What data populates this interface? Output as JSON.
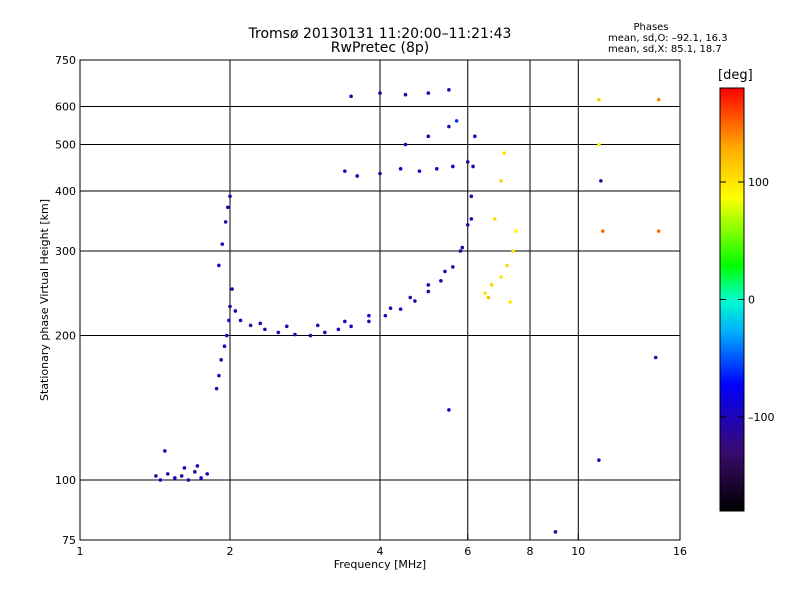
{
  "title": "Tromsø 20130131 11:20:00–11:21:43",
  "subtitle": "RwPretec (8p)",
  "stats": {
    "header": "Phases",
    "o_line": "mean, sd,O: –92.1, 16.3",
    "x_line": "mean, sd,X: 85.1, 18.7"
  },
  "colorbar": {
    "unit": "[deg]",
    "ticks": [
      {
        "value": 100,
        "label": "100"
      },
      {
        "value": 0,
        "label": "0"
      },
      {
        "value": -100,
        "label": "–100"
      }
    ],
    "range": [
      -180,
      180
    ]
  },
  "chart_data": {
    "type": "scatter",
    "title": "Tromsø 20130131 11:20:00–11:21:43",
    "subtitle": "RwPretec (8p)",
    "xlabel": "Frequency [MHz]",
    "ylabel": "Stationary phase Virtual Height [km]",
    "xscale": "log",
    "yscale": "log",
    "xlim": [
      1,
      16
    ],
    "ylim": [
      75,
      750
    ],
    "xticks": [
      {
        "v": 1,
        "l": "1"
      },
      {
        "v": 2,
        "l": "2"
      },
      {
        "v": 4,
        "l": "4"
      },
      {
        "v": 6,
        "l": "6"
      },
      {
        "v": 8,
        "l": "8"
      },
      {
        "v": 10,
        "l": "10"
      },
      {
        "v": 16,
        "l": "16"
      }
    ],
    "yticks": [
      {
        "v": 75,
        "l": "75"
      },
      {
        "v": 100,
        "l": "100"
      },
      {
        "v": 200,
        "l": "200"
      },
      {
        "v": 300,
        "l": "300"
      },
      {
        "v": 400,
        "l": "400"
      },
      {
        "v": 500,
        "l": "500"
      },
      {
        "v": 600,
        "l": "600"
      },
      {
        "v": 750,
        "l": "750"
      }
    ],
    "grid_x": [
      2,
      4,
      6,
      8,
      10
    ],
    "grid_y": [
      100,
      200,
      300,
      400,
      500,
      600
    ],
    "grid": true,
    "points": [
      [
        1.42,
        102,
        -110
      ],
      [
        1.45,
        100,
        -100
      ],
      [
        1.5,
        103,
        -105
      ],
      [
        1.55,
        101,
        -95
      ],
      [
        1.6,
        102,
        -110
      ],
      [
        1.65,
        100,
        -100
      ],
      [
        1.7,
        104,
        -115
      ],
      [
        1.75,
        101,
        -90
      ],
      [
        1.8,
        103,
        -105
      ],
      [
        1.48,
        115,
        -100
      ],
      [
        1.62,
        106,
        -95
      ],
      [
        1.72,
        107,
        -110
      ],
      [
        1.88,
        155,
        -105
      ],
      [
        1.9,
        165,
        -100
      ],
      [
        1.92,
        178,
        -110
      ],
      [
        1.95,
        190,
        -95
      ],
      [
        1.97,
        200,
        -100
      ],
      [
        1.99,
        215,
        -105
      ],
      [
        2.0,
        230,
        -110
      ],
      [
        2.02,
        250,
        -100
      ],
      [
        1.9,
        280,
        -95
      ],
      [
        1.93,
        310,
        -105
      ],
      [
        1.96,
        345,
        -110
      ],
      [
        1.98,
        370,
        -100
      ],
      [
        2.0,
        390,
        -105
      ],
      [
        2.05,
        225,
        -100
      ],
      [
        2.1,
        215,
        -105
      ],
      [
        2.2,
        210,
        -110
      ],
      [
        2.35,
        206,
        -100
      ],
      [
        2.5,
        203,
        -95
      ],
      [
        2.7,
        201,
        -105
      ],
      [
        2.9,
        200,
        -110
      ],
      [
        3.1,
        203,
        -100
      ],
      [
        3.3,
        206,
        -95
      ],
      [
        3.5,
        209,
        -105
      ],
      [
        3.8,
        214,
        -110
      ],
      [
        4.1,
        220,
        -100
      ],
      [
        4.4,
        227,
        -95
      ],
      [
        4.7,
        236,
        -105
      ],
      [
        5.0,
        247,
        -110
      ],
      [
        5.3,
        260,
        -100
      ],
      [
        5.6,
        278,
        -105
      ],
      [
        5.85,
        305,
        -110
      ],
      [
        6.0,
        340,
        -100
      ],
      [
        6.1,
        390,
        -105
      ],
      [
        6.15,
        450,
        -110
      ],
      [
        6.2,
        520,
        -100
      ],
      [
        2.3,
        212,
        -100
      ],
      [
        2.6,
        209,
        -105
      ],
      [
        3.0,
        210,
        -110
      ],
      [
        3.4,
        214,
        -100
      ],
      [
        3.8,
        220,
        -95
      ],
      [
        4.2,
        228,
        -105
      ],
      [
        4.6,
        240,
        -110
      ],
      [
        5.0,
        255,
        -100
      ],
      [
        5.4,
        272,
        -95
      ],
      [
        5.8,
        300,
        -105
      ],
      [
        6.1,
        350,
        -110
      ],
      [
        3.4,
        440,
        -100
      ],
      [
        3.6,
        430,
        -105
      ],
      [
        4.0,
        435,
        -110
      ],
      [
        4.4,
        445,
        -100
      ],
      [
        4.8,
        440,
        -95
      ],
      [
        5.2,
        445,
        -105
      ],
      [
        5.6,
        450,
        -100
      ],
      [
        6.0,
        460,
        -110
      ],
      [
        4.5,
        500,
        -105
      ],
      [
        5.0,
        520,
        -100
      ],
      [
        5.5,
        545,
        -110
      ],
      [
        5.7,
        560,
        -60
      ],
      [
        3.5,
        630,
        -105
      ],
      [
        4.0,
        640,
        -100
      ],
      [
        4.5,
        635,
        -110
      ],
      [
        5.0,
        640,
        -95
      ],
      [
        5.5,
        650,
        -105
      ],
      [
        6.5,
        245,
        100
      ],
      [
        6.7,
        255,
        110
      ],
      [
        7.0,
        265,
        95
      ],
      [
        7.2,
        280,
        105
      ],
      [
        7.4,
        300,
        100
      ],
      [
        7.5,
        330,
        90
      ],
      [
        6.8,
        350,
        105
      ],
      [
        7.0,
        420,
        110
      ],
      [
        7.1,
        480,
        100
      ],
      [
        6.6,
        240,
        120
      ],
      [
        7.3,
        235,
        95
      ],
      [
        11,
        620,
        110
      ],
      [
        11,
        500,
        90
      ],
      [
        11.2,
        330,
        150
      ],
      [
        11.1,
        420,
        -110
      ],
      [
        14.5,
        620,
        140
      ],
      [
        14.5,
        330,
        150
      ],
      [
        14.3,
        180,
        -110
      ],
      [
        11,
        110,
        -110
      ],
      [
        9.0,
        78,
        -110
      ],
      [
        5.5,
        140,
        -100
      ]
    ]
  }
}
